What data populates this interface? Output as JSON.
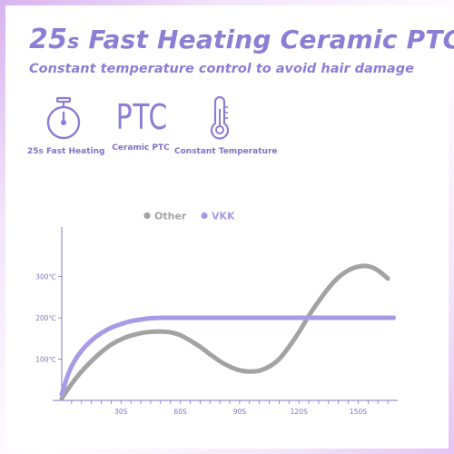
{
  "header": {
    "title_prefix": "25",
    "title_unit": "s",
    "title_rest": " Fast Heating Ceramic PTC",
    "subtitle": "Constant temperature control to avoid hair damage"
  },
  "features": [
    {
      "icon": "stopwatch-icon",
      "label": "25s Fast Heating"
    },
    {
      "icon": "ptc-text-icon",
      "glyph_text": "PTC",
      "label": "Ceramic PTC"
    },
    {
      "icon": "thermometer-icon",
      "label": "Constant Temperature"
    }
  ],
  "colors": {
    "accent": "#8a7fd4",
    "vkk": "#a99ae6",
    "other": "#a3a3a3",
    "axis": "#7d74c4"
  },
  "chart_data": {
    "type": "line",
    "title": "",
    "xlabel": "",
    "ylabel": "",
    "legend": {
      "placement": "top-center",
      "entries": [
        "Other",
        "VKK"
      ]
    },
    "x_ticks": [
      {
        "value": 30,
        "label": "30S"
      },
      {
        "value": 60,
        "label": "60S"
      },
      {
        "value": 90,
        "label": "90S"
      },
      {
        "value": 120,
        "label": "120S"
      },
      {
        "value": 150,
        "label": "150S"
      }
    ],
    "y_ticks": [
      {
        "value": 100,
        "label": "100℃"
      },
      {
        "value": 200,
        "label": "200℃"
      },
      {
        "value": 300,
        "label": "300℃"
      }
    ],
    "xlim": [
      0,
      170
    ],
    "ylim": [
      0,
      420
    ],
    "series": [
      {
        "name": "Other",
        "color": "#a3a3a3",
        "x": [
          0,
          5,
          10,
          15,
          20,
          25,
          30,
          35,
          40,
          45,
          50,
          55,
          60,
          65,
          70,
          75,
          80,
          85,
          90,
          95,
          100,
          105,
          110,
          115,
          120,
          125,
          130,
          135,
          140,
          145,
          150,
          155,
          160,
          165
        ],
        "y": [
          5,
          40,
          70,
          95,
          117,
          135,
          148,
          157,
          163,
          166,
          167,
          165,
          158,
          145,
          130,
          112,
          95,
          82,
          73,
          70,
          72,
          82,
          100,
          130,
          165,
          205,
          240,
          272,
          298,
          315,
          324,
          325,
          315,
          295
        ]
      },
      {
        "name": "VKK",
        "color": "#a99ae6",
        "x": [
          0,
          3,
          6,
          10,
          15,
          20,
          25,
          30,
          35,
          40,
          45,
          50,
          55,
          60,
          70,
          80,
          100,
          120,
          140,
          160,
          168
        ],
        "y": [
          15,
          60,
          92,
          120,
          145,
          163,
          176,
          185,
          192,
          196,
          199,
          200,
          200,
          200,
          200,
          200,
          200,
          200,
          200,
          200,
          200
        ]
      }
    ]
  }
}
